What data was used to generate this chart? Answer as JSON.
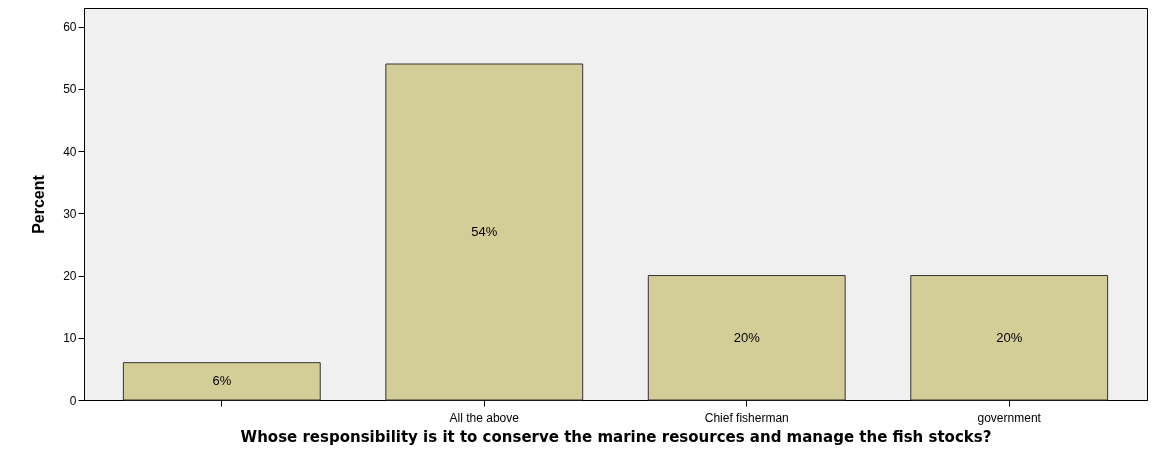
{
  "chart_data": {
    "type": "bar",
    "xlabel": "Whose responsibility is it to conserve the marine resources and manage the fish stocks?",
    "ylabel": "Percent",
    "categories": [
      null,
      "All the above",
      "Chief fisherman",
      "government"
    ],
    "values": [
      6,
      54,
      20,
      20
    ],
    "value_labels": [
      "6%",
      "54%",
      "20%",
      "20%"
    ],
    "color": "#d3ce97",
    "ylim": [
      0,
      63
    ],
    "yticks": [
      0,
      10,
      20,
      30,
      40,
      50,
      60
    ],
    "grid": false
  }
}
